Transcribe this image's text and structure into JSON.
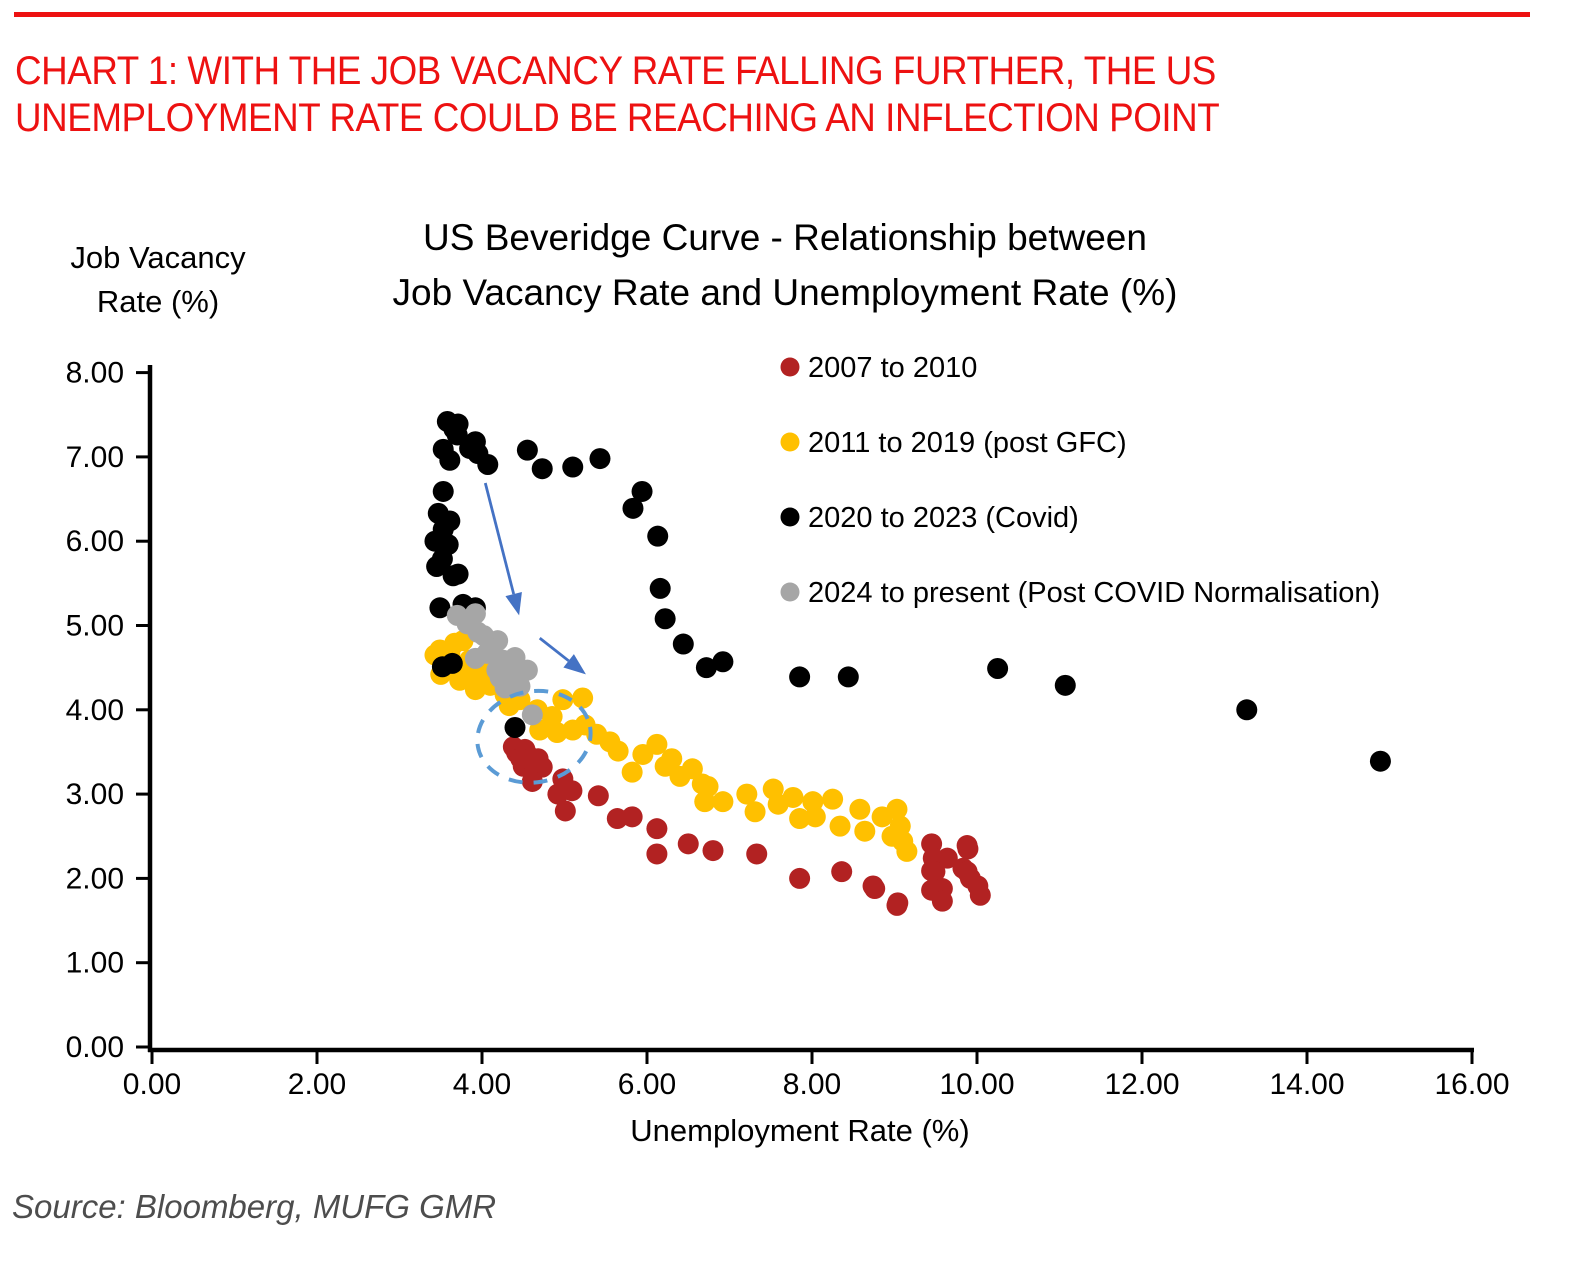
{
  "header": {
    "line1": "CHART 1: WITH THE JOB VACANCY RATE FALLING FURTHER, THE US",
    "line2": "UNEMPLOYMENT RATE COULD BE REACHING AN INFLECTION POINT",
    "color": "#ED1111"
  },
  "source_note": "Source: Bloomberg, MUFG GMR",
  "chart_data": {
    "type": "scatter",
    "title_line1": "US Beveridge Curve - Relationship between",
    "title_line2": "Job Vacancy Rate and Unemployment Rate (%)",
    "title": "US Beveridge Curve - Relationship between Job Vacancy Rate and Unemployment Rate (%)",
    "xlabel": "Unemployment Rate (%)",
    "ylabel": "Job Vacancy Rate (%)",
    "y_axis_label_line1": "Job Vacancy",
    "y_axis_label_line2": "Rate (%)",
    "xlim": [
      0,
      16
    ],
    "ylim": [
      0,
      8
    ],
    "grid": false,
    "legend_position": "upper-right-inside",
    "x_ticks": [
      {
        "value": 0,
        "label": "0.00"
      },
      {
        "value": 2,
        "label": "2.00"
      },
      {
        "value": 4,
        "label": "4.00"
      },
      {
        "value": 6,
        "label": "6.00"
      },
      {
        "value": 8,
        "label": "8.00"
      },
      {
        "value": 10,
        "label": "10.00"
      },
      {
        "value": 12,
        "label": "12.00"
      },
      {
        "value": 14,
        "label": "14.00"
      },
      {
        "value": 16,
        "label": "16.00"
      }
    ],
    "y_ticks": [
      {
        "value": 0,
        "label": "0.00"
      },
      {
        "value": 1,
        "label": "1.00"
      },
      {
        "value": 2,
        "label": "2.00"
      },
      {
        "value": 3,
        "label": "3.00"
      },
      {
        "value": 4,
        "label": "4.00"
      },
      {
        "value": 5,
        "label": "5.00"
      },
      {
        "value": 6,
        "label": "6.00"
      },
      {
        "value": 7,
        "label": "7.00"
      },
      {
        "value": 8,
        "label": "8.00"
      }
    ],
    "series": [
      {
        "name": "2007 to 2010",
        "color": "#B22222",
        "points": [
          [
            4.42,
            3.49
          ],
          [
            4.58,
            3.44
          ],
          [
            4.5,
            3.33
          ],
          [
            4.64,
            3.29
          ],
          [
            4.73,
            3.32
          ],
          [
            4.61,
            3.15
          ],
          [
            4.38,
            3.56
          ],
          [
            4.52,
            3.53
          ],
          [
            4.47,
            3.42
          ],
          [
            4.68,
            3.42
          ],
          [
            4.98,
            3.18
          ],
          [
            5.09,
            3.04
          ],
          [
            4.92,
            3.0
          ],
          [
            5.01,
            2.8
          ],
          [
            5.41,
            2.98
          ],
          [
            5.64,
            2.71
          ],
          [
            5.82,
            2.73
          ],
          [
            6.12,
            2.59
          ],
          [
            6.12,
            2.29
          ],
          [
            6.5,
            2.41
          ],
          [
            6.8,
            2.33
          ],
          [
            7.33,
            2.29
          ],
          [
            7.85,
            2.0
          ],
          [
            8.36,
            2.08
          ],
          [
            8.76,
            1.88
          ],
          [
            9.03,
            1.68
          ],
          [
            8.74,
            1.91
          ],
          [
            9.04,
            1.71
          ],
          [
            9.45,
            2.41
          ],
          [
            9.47,
            2.24
          ],
          [
            9.64,
            2.24
          ],
          [
            9.88,
            2.39
          ],
          [
            9.89,
            2.35
          ],
          [
            9.45,
            2.09
          ],
          [
            9.49,
            2.08
          ],
          [
            9.58,
            1.88
          ],
          [
            9.45,
            1.86
          ],
          [
            9.83,
            2.12
          ],
          [
            9.88,
            2.08
          ],
          [
            9.92,
            2.0
          ],
          [
            10.01,
            1.91
          ],
          [
            10.04,
            1.8
          ],
          [
            9.58,
            1.73
          ]
        ]
      },
      {
        "name": "2011 to 2019 (post GFC)",
        "color": "#FFC000",
        "points": [
          [
            9.15,
            2.32
          ],
          [
            9.1,
            2.44
          ],
          [
            9.07,
            2.62
          ],
          [
            9.03,
            2.82
          ],
          [
            8.97,
            2.5
          ],
          [
            8.85,
            2.73
          ],
          [
            8.64,
            2.56
          ],
          [
            8.58,
            2.82
          ],
          [
            8.34,
            2.62
          ],
          [
            8.25,
            2.94
          ],
          [
            8.04,
            2.73
          ],
          [
            8.01,
            2.91
          ],
          [
            7.85,
            2.71
          ],
          [
            7.77,
            2.96
          ],
          [
            7.59,
            2.88
          ],
          [
            7.53,
            3.06
          ],
          [
            7.31,
            2.79
          ],
          [
            7.21,
            3.0
          ],
          [
            6.92,
            2.91
          ],
          [
            6.74,
            3.09
          ],
          [
            6.7,
            2.91
          ],
          [
            6.67,
            3.12
          ],
          [
            6.55,
            3.3
          ],
          [
            6.4,
            3.21
          ],
          [
            6.3,
            3.42
          ],
          [
            6.22,
            3.33
          ],
          [
            6.12,
            3.59
          ],
          [
            5.95,
            3.47
          ],
          [
            5.82,
            3.26
          ],
          [
            5.65,
            3.51
          ],
          [
            5.55,
            3.62
          ],
          [
            5.39,
            3.71
          ],
          [
            5.25,
            3.82
          ],
          [
            5.1,
            3.76
          ],
          [
            4.91,
            3.73
          ],
          [
            4.85,
            3.92
          ],
          [
            4.7,
            3.76
          ],
          [
            4.67,
            4.0
          ],
          [
            4.98,
            4.12
          ],
          [
            5.22,
            4.14
          ],
          [
            4.46,
            4.12
          ],
          [
            4.28,
            4.18
          ],
          [
            4.1,
            4.29
          ],
          [
            3.98,
            4.45
          ],
          [
            3.92,
            4.24
          ],
          [
            3.85,
            4.59
          ],
          [
            3.77,
            4.82
          ],
          [
            3.73,
            4.35
          ],
          [
            3.67,
            4.79
          ],
          [
            3.61,
            4.67
          ],
          [
            3.61,
            4.49
          ],
          [
            3.49,
            4.71
          ],
          [
            3.43,
            4.65
          ],
          [
            3.55,
            4.55
          ],
          [
            3.7,
            4.5
          ],
          [
            3.8,
            4.4
          ],
          [
            3.9,
            4.55
          ],
          [
            4.05,
            4.5
          ],
          [
            3.5,
            4.42
          ],
          [
            4.15,
            4.42
          ],
          [
            4.0,
            4.62
          ],
          [
            4.33,
            4.05
          ]
        ]
      },
      {
        "name": "2020 to 2023 (Covid)",
        "color": "#000000",
        "points": [
          [
            3.58,
            7.42
          ],
          [
            3.71,
            7.39
          ],
          [
            3.7,
            7.26
          ],
          [
            3.92,
            7.18
          ],
          [
            3.53,
            7.09
          ],
          [
            3.66,
            7.33
          ],
          [
            3.95,
            7.04
          ],
          [
            3.85,
            7.1
          ],
          [
            3.61,
            6.96
          ],
          [
            4.07,
            6.91
          ],
          [
            4.55,
            7.08
          ],
          [
            4.73,
            6.86
          ],
          [
            5.1,
            6.88
          ],
          [
            5.43,
            6.98
          ],
          [
            5.94,
            6.59
          ],
          [
            5.83,
            6.39
          ],
          [
            6.13,
            6.06
          ],
          [
            6.16,
            5.44
          ],
          [
            6.22,
            5.08
          ],
          [
            6.44,
            4.78
          ],
          [
            6.72,
            4.5
          ],
          [
            6.92,
            4.57
          ],
          [
            7.85,
            4.39
          ],
          [
            8.44,
            4.39
          ],
          [
            10.25,
            4.49
          ],
          [
            11.07,
            4.29
          ],
          [
            13.27,
            4.0
          ],
          [
            14.89,
            3.39
          ],
          [
            3.53,
            6.59
          ],
          [
            3.47,
            6.33
          ],
          [
            3.61,
            6.24
          ],
          [
            3.53,
            6.14
          ],
          [
            3.43,
            6.0
          ],
          [
            3.59,
            5.96
          ],
          [
            3.52,
            5.79
          ],
          [
            3.45,
            5.7
          ],
          [
            3.71,
            5.61
          ],
          [
            3.65,
            5.59
          ],
          [
            3.49,
            5.21
          ],
          [
            3.77,
            5.25
          ],
          [
            3.92,
            5.21
          ],
          [
            3.52,
            4.51
          ],
          [
            3.64,
            4.55
          ],
          [
            4.4,
            3.79
          ]
        ]
      },
      {
        "name": "2024 to present (Post COVID Normalisation)",
        "color": "#A6A6A6",
        "points": [
          [
            3.7,
            5.12
          ],
          [
            3.92,
            5.14
          ],
          [
            3.95,
            4.92
          ],
          [
            4.19,
            4.82
          ],
          [
            4.25,
            4.59
          ],
          [
            4.4,
            4.62
          ],
          [
            4.55,
            4.47
          ],
          [
            4.06,
            4.67
          ],
          [
            3.92,
            4.61
          ],
          [
            4.18,
            4.47
          ],
          [
            4.38,
            4.44
          ],
          [
            4.28,
            4.26
          ],
          [
            4.61,
            3.94
          ],
          [
            3.82,
            5.02
          ],
          [
            4.02,
            4.88
          ],
          [
            4.12,
            4.72
          ],
          [
            4.33,
            4.55
          ],
          [
            4.22,
            4.38
          ],
          [
            4.46,
            4.28
          ]
        ]
      }
    ],
    "annotations": {
      "arrow_color": "#4472C4",
      "ellipse_color": "#5B9BD5",
      "arrows": [
        {
          "from": [
            4.04,
            6.69
          ],
          "to": [
            4.45,
            5.12
          ]
        },
        {
          "from": [
            4.7,
            4.85
          ],
          "to": [
            5.26,
            4.42
          ]
        }
      ],
      "ellipse": {
        "cx": 4.63,
        "cy": 3.68,
        "rx": 0.69,
        "ry": 0.54,
        "rotate_deg": -10
      }
    }
  }
}
